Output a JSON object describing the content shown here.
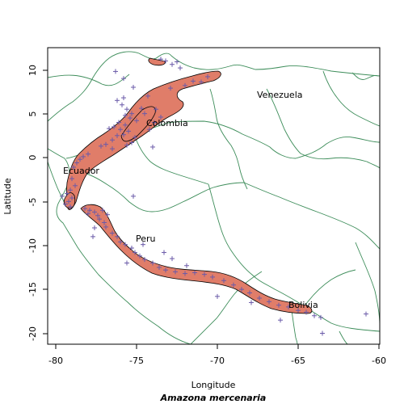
{
  "map": {
    "xlabel": "Longitude",
    "ylabel": "Latitude",
    "subtitle": "Amazona mercenaria",
    "x_ticks": [
      "-80",
      "-75",
      "-70",
      "-65",
      "-60"
    ],
    "y_ticks": [
      "10",
      "5",
      "0",
      "-5",
      "-10",
      "-15",
      "-20"
    ],
    "countries": [
      "Venezuela",
      "Colombia",
      "Ecuador",
      "Peru",
      "Bolivia"
    ],
    "border_color": "#3d8d5a",
    "range_fill": "#e07d69",
    "point_color": "#6a5aa8",
    "point_marker": "+"
  },
  "chart_data": {
    "type": "scatter",
    "xlim": [
      -80.5,
      -60
    ],
    "ylim": [
      -21.5,
      12.5
    ],
    "x_ticks": [
      -80,
      -75,
      -70,
      -65,
      -60
    ],
    "y_ticks": [
      10,
      5,
      0,
      -5,
      -10,
      -15,
      -20
    ],
    "points": [
      [
        -73.5,
        11.2
      ],
      [
        -73.2,
        11.0
      ],
      [
        -72.5,
        10.9
      ],
      [
        -72.8,
        10.6
      ],
      [
        -72.3,
        10.2
      ],
      [
        -71.5,
        8.7
      ],
      [
        -72.0,
        8.2
      ],
      [
        -70.6,
        9.2
      ],
      [
        -71.0,
        8.6
      ],
      [
        -75.8,
        9.0
      ],
      [
        -75.2,
        8.0
      ],
      [
        -75.8,
        6.8
      ],
      [
        -76.2,
        6.5
      ],
      [
        -75.9,
        6.0
      ],
      [
        -75.6,
        5.5
      ],
      [
        -75.3,
        5.0
      ],
      [
        -75.7,
        4.8
      ],
      [
        -75.4,
        4.5
      ],
      [
        -75.0,
        4.2
      ],
      [
        -76.1,
        4.0
      ],
      [
        -75.7,
        3.7
      ],
      [
        -76.4,
        3.5
      ],
      [
        -76.0,
        3.2
      ],
      [
        -76.7,
        3.3
      ],
      [
        -75.5,
        3.0
      ],
      [
        -75.8,
        2.6
      ],
      [
        -76.2,
        2.5
      ],
      [
        -74.7,
        5.6
      ],
      [
        -74.5,
        5.0
      ],
      [
        -73.8,
        5.5
      ],
      [
        -73.5,
        4.6
      ],
      [
        -73.9,
        4.0
      ],
      [
        -74.2,
        3.2
      ],
      [
        -75.1,
        2.3
      ],
      [
        -75.3,
        1.7
      ],
      [
        -75.6,
        1.4
      ],
      [
        -76.9,
        1.5
      ],
      [
        -77.2,
        1.3
      ],
      [
        -76.5,
        1.0
      ],
      [
        -78.0,
        0.4
      ],
      [
        -78.3,
        0.1
      ],
      [
        -78.5,
        -0.2
      ],
      [
        -78.7,
        -0.6
      ],
      [
        -78.9,
        -1.1
      ],
      [
        -79.0,
        -2.4
      ],
      [
        -78.8,
        -3.2
      ],
      [
        -79.1,
        -3.7
      ],
      [
        -79.3,
        -4.1
      ],
      [
        -79.0,
        -4.6
      ],
      [
        -79.2,
        -5.0
      ],
      [
        -79.4,
        -5.3
      ],
      [
        -79.1,
        -5.6
      ],
      [
        -79.6,
        -4.4
      ],
      [
        -78.2,
        -5.8
      ],
      [
        -77.9,
        -6.0
      ],
      [
        -77.6,
        -6.2
      ],
      [
        -78.0,
        -6.4
      ],
      [
        -77.4,
        -6.6
      ],
      [
        -77.1,
        -6.0
      ],
      [
        -76.8,
        -6.5
      ],
      [
        -77.3,
        -7.0
      ],
      [
        -77.0,
        -7.4
      ],
      [
        -76.9,
        -7.9
      ],
      [
        -77.6,
        -8.0
      ],
      [
        -76.5,
        -8.6
      ],
      [
        -76.2,
        -9.0
      ],
      [
        -76.0,
        -9.6
      ],
      [
        -75.7,
        -9.9
      ],
      [
        -75.3,
        -10.3
      ],
      [
        -75.1,
        -10.8
      ],
      [
        -74.8,
        -11.2
      ],
      [
        -74.5,
        -11.6
      ],
      [
        -74.0,
        -12.0
      ],
      [
        -73.6,
        -12.5
      ],
      [
        -73.2,
        -12.8
      ],
      [
        -72.6,
        -13.0
      ],
      [
        -72.0,
        -13.2
      ],
      [
        -71.4,
        -13.1
      ],
      [
        -70.8,
        -13.3
      ],
      [
        -70.3,
        -13.6
      ],
      [
        -69.6,
        -14.0
      ],
      [
        -69.0,
        -14.5
      ],
      [
        -68.5,
        -15.0
      ],
      [
        -68.0,
        -15.4
      ],
      [
        -67.4,
        -16.0
      ],
      [
        -66.8,
        -16.4
      ],
      [
        -66.2,
        -16.8
      ],
      [
        -65.6,
        -17.0
      ],
      [
        -65.0,
        -17.4
      ],
      [
        -64.5,
        -17.6
      ],
      [
        -64.0,
        -18.0
      ],
      [
        -63.6,
        -18.2
      ],
      [
        -63.5,
        -20.0
      ],
      [
        -60.8,
        -17.8
      ],
      [
        -74.0,
        1.2
      ],
      [
        -75.2,
        -4.4
      ],
      [
        -74.6,
        -9.9
      ],
      [
        -73.3,
        -10.8
      ],
      [
        -72.8,
        -11.5
      ],
      [
        -71.9,
        -12.3
      ],
      [
        -76.3,
        9.8
      ],
      [
        -72.9,
        7.9
      ],
      [
        -74.3,
        7.0
      ],
      [
        -76.5,
        2.0
      ],
      [
        -77.7,
        -9.0
      ],
      [
        -75.6,
        -12.0
      ],
      [
        -70.0,
        -15.8
      ],
      [
        -67.9,
        -16.5
      ],
      [
        -66.1,
        -18.5
      ]
    ]
  }
}
